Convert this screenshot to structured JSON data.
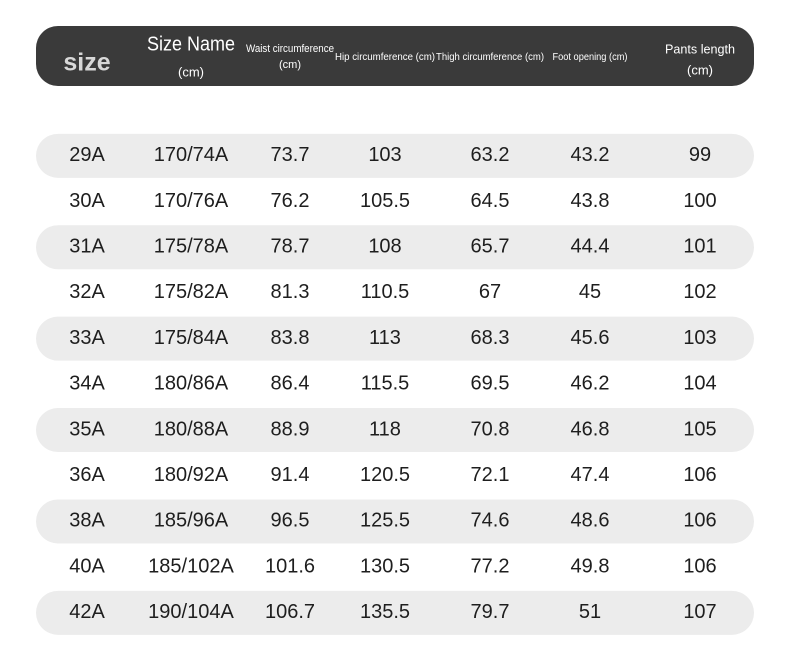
{
  "table": {
    "headers": [
      {
        "title": "size"
      },
      {
        "title": "Size Name",
        "unit": "(cm)"
      },
      {
        "title": "Waist circumference",
        "unit": "(cm)"
      },
      {
        "title": "Hip circumference (cm)"
      },
      {
        "title": "Thigh circumference (cm)"
      },
      {
        "title": "Foot opening (cm)"
      },
      {
        "title": "Pants length",
        "unit": "(cm)"
      }
    ],
    "rows": [
      [
        "29A",
        "170/74A",
        73.7,
        103,
        63.2,
        43.2,
        99
      ],
      [
        "30A",
        "170/76A",
        76.2,
        105.5,
        64.5,
        43.8,
        100
      ],
      [
        "31A",
        "175/78A",
        78.7,
        108,
        65.7,
        44.4,
        101
      ],
      [
        "32A",
        "175/82A",
        81.3,
        110.5,
        67,
        45,
        102
      ],
      [
        "33A",
        "175/84A",
        83.8,
        113,
        68.3,
        45.6,
        103
      ],
      [
        "34A",
        "180/86A",
        86.4,
        115.5,
        69.5,
        46.2,
        104
      ],
      [
        "35A",
        "180/88A",
        88.9,
        118,
        70.8,
        46.8,
        105
      ],
      [
        "36A",
        "180/92A",
        91.4,
        120.5,
        72.1,
        47.4,
        106
      ],
      [
        "38A",
        "185/96A",
        96.5,
        125.5,
        74.6,
        48.6,
        106
      ],
      [
        "40A",
        "185/102A",
        101.6,
        130.5,
        77.2,
        49.8,
        106
      ],
      [
        "42A",
        "190/104A",
        106.7,
        135.5,
        79.7,
        51,
        107
      ]
    ]
  }
}
